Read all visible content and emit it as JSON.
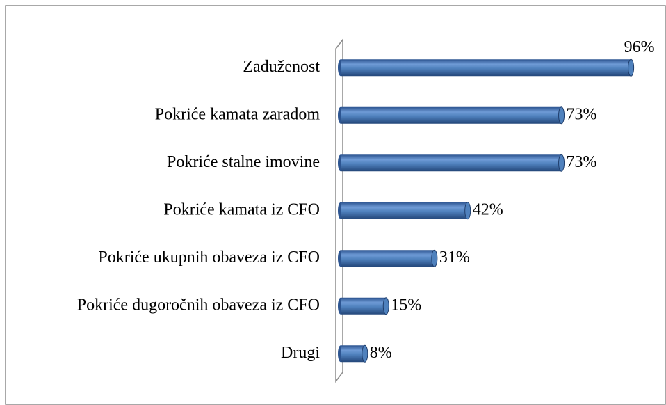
{
  "chart_data": {
    "type": "bar",
    "orientation": "horizontal",
    "categories": [
      "Zaduženost",
      "Pokriće kamata zaradom",
      "Pokriće stalne imovine",
      "Pokriće kamata iz CFO",
      "Pokriće ukupnih obaveza iz CFO",
      "Pokriće dugoročnih obaveza iz CFO",
      "Drugi"
    ],
    "values": [
      96,
      73,
      73,
      42,
      31,
      15,
      8
    ],
    "value_labels": [
      "96%",
      "73%",
      "73%",
      "42%",
      "31%",
      "15%",
      "8%"
    ],
    "color": "#4f81bd",
    "xlim": [
      0,
      100
    ]
  }
}
